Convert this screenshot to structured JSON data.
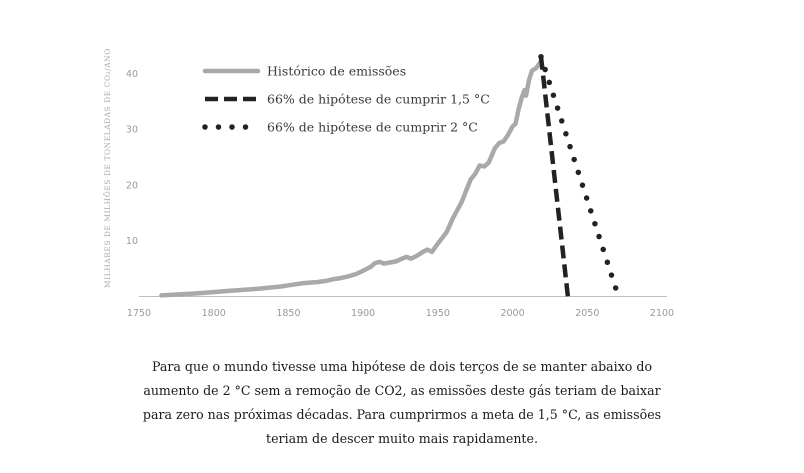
{
  "chart_data": {
    "type": "line",
    "ylabel": "MILHARES DE MILHÕES DE TONELADAS DE CO₂/ANO",
    "xlim": [
      1750,
      2100
    ],
    "ylim": [
      0,
      45
    ],
    "xticks": [
      "1750",
      "1800",
      "1850",
      "1900",
      "1950",
      "2000",
      "2050",
      "2100"
    ],
    "yticks": [
      "10",
      "20",
      "30",
      "40"
    ],
    "legend_position": "top-left",
    "grid": false,
    "series": [
      {
        "name": "Histórico de emissões",
        "style": "solid",
        "color": "#a9a9a9",
        "x": [
          1765,
          1790,
          1810,
          1830,
          1845,
          1850,
          1860,
          1870,
          1875,
          1880,
          1885,
          1890,
          1895,
          1900,
          1905,
          1908,
          1911,
          1914,
          1918,
          1922,
          1926,
          1929,
          1932,
          1936,
          1940,
          1943,
          1946,
          1950,
          1953,
          1956,
          1960,
          1963,
          1966,
          1969,
          1972,
          1975,
          1978,
          1981,
          1984,
          1988,
          1991,
          1994,
          1997,
          2000,
          2002,
          2004,
          2006,
          2008,
          2009,
          2011,
          2013,
          2016,
          2019
        ],
        "y": [
          0.2,
          0.6,
          1.0,
          1.4,
          1.8,
          2.0,
          2.4,
          2.6,
          2.8,
          3.1,
          3.3,
          3.6,
          4.0,
          4.6,
          5.3,
          6.0,
          6.2,
          5.9,
          6.1,
          6.3,
          6.8,
          7.1,
          6.8,
          7.3,
          8.0,
          8.4,
          8.0,
          9.5,
          10.5,
          11.6,
          14.0,
          15.5,
          17.0,
          19.0,
          21.0,
          22.0,
          23.5,
          23.3,
          24.0,
          26.5,
          27.5,
          27.8,
          29.0,
          30.5,
          31.0,
          33.5,
          35.5,
          37.0,
          36.0,
          38.8,
          40.5,
          41.0,
          42.2
        ]
      },
      {
        "name": "66% de hipótese de cumprir 1,5 °C",
        "style": "dashed",
        "color": "#222222",
        "x": [
          2019,
          2037
        ],
        "y": [
          43,
          0
        ]
      },
      {
        "name": "66% de hipótese de cumprir 2 °C",
        "style": "dotted",
        "color": "#222222",
        "x": [
          2019,
          2069
        ],
        "y": [
          43,
          1.5
        ]
      }
    ]
  },
  "caption": {
    "lines": [
      "Para que o mundo tivesse uma hipótese de dois terços de se manter abaixo do",
      "aumento de 2 °C sem a remoção de CO2, as emissões deste gás teriam de baixar",
      "para zero nas próximas décadas. Para cumprirmos a meta de 1,5 °C, as emissões",
      "teriam de descer muito mais rapidamente."
    ]
  }
}
